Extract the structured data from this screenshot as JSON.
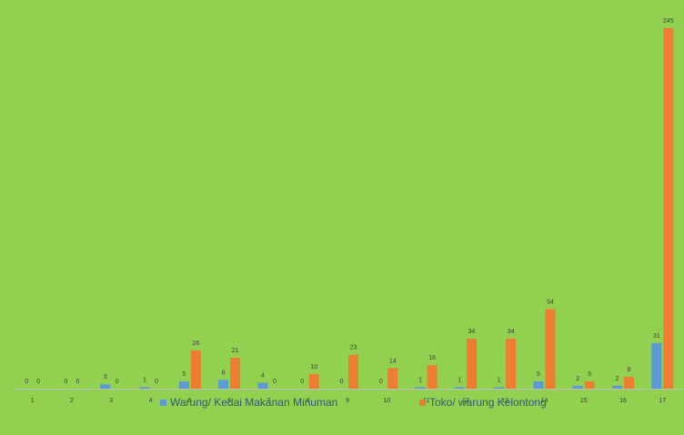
{
  "chart_data": {
    "type": "bar",
    "title": "",
    "xlabel": "",
    "ylabel": "",
    "categories": [
      "1",
      "2",
      "3",
      "4",
      "5",
      "6",
      "7",
      "8",
      "9",
      "10",
      "11",
      "12",
      "13",
      "14",
      "15",
      "16",
      "17"
    ],
    "series": [
      {
        "name": "Warung/ Kedai Makanan Minuman",
        "color": "#5b9bd5",
        "values": [
          0,
          0,
          3,
          1,
          5,
          6,
          4,
          0,
          0,
          0,
          1,
          1,
          1,
          5,
          2,
          2,
          31
        ]
      },
      {
        "name": "Toko/ warung Kelontong",
        "color": "#ed7d31",
        "values": [
          0,
          0,
          0,
          0,
          26,
          21,
          0,
          10,
          23,
          14,
          16,
          34,
          34,
          54,
          5,
          8,
          245
        ]
      }
    ],
    "ylim": [
      0,
      245
    ],
    "grid": false,
    "legend_position": "bottom",
    "data_labels": true
  },
  "colors": {
    "background": "#92d050",
    "axis": "#bfbfbf",
    "label_text": "#404040"
  }
}
